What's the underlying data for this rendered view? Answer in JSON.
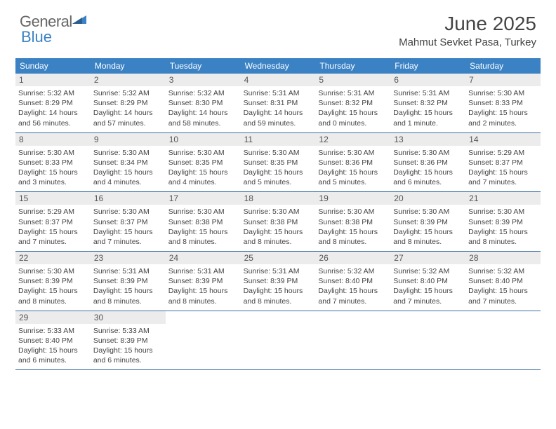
{
  "brand": {
    "part1": "General",
    "part2": "Blue"
  },
  "title": "June 2025",
  "location": "Mahmut Sevket Pasa, Turkey",
  "colors": {
    "header_bg": "#3b82c4",
    "daynum_bg": "#ececec",
    "row_border": "#3b6fa0",
    "text": "#444444"
  },
  "weekdays": [
    "Sunday",
    "Monday",
    "Tuesday",
    "Wednesday",
    "Thursday",
    "Friday",
    "Saturday"
  ],
  "weeks": [
    [
      {
        "n": "1",
        "sr": "Sunrise: 5:32 AM",
        "ss": "Sunset: 8:29 PM",
        "d1": "Daylight: 14 hours",
        "d2": "and 56 minutes."
      },
      {
        "n": "2",
        "sr": "Sunrise: 5:32 AM",
        "ss": "Sunset: 8:29 PM",
        "d1": "Daylight: 14 hours",
        "d2": "and 57 minutes."
      },
      {
        "n": "3",
        "sr": "Sunrise: 5:32 AM",
        "ss": "Sunset: 8:30 PM",
        "d1": "Daylight: 14 hours",
        "d2": "and 58 minutes."
      },
      {
        "n": "4",
        "sr": "Sunrise: 5:31 AM",
        "ss": "Sunset: 8:31 PM",
        "d1": "Daylight: 14 hours",
        "d2": "and 59 minutes."
      },
      {
        "n": "5",
        "sr": "Sunrise: 5:31 AM",
        "ss": "Sunset: 8:32 PM",
        "d1": "Daylight: 15 hours",
        "d2": "and 0 minutes."
      },
      {
        "n": "6",
        "sr": "Sunrise: 5:31 AM",
        "ss": "Sunset: 8:32 PM",
        "d1": "Daylight: 15 hours",
        "d2": "and 1 minute."
      },
      {
        "n": "7",
        "sr": "Sunrise: 5:30 AM",
        "ss": "Sunset: 8:33 PM",
        "d1": "Daylight: 15 hours",
        "d2": "and 2 minutes."
      }
    ],
    [
      {
        "n": "8",
        "sr": "Sunrise: 5:30 AM",
        "ss": "Sunset: 8:33 PM",
        "d1": "Daylight: 15 hours",
        "d2": "and 3 minutes."
      },
      {
        "n": "9",
        "sr": "Sunrise: 5:30 AM",
        "ss": "Sunset: 8:34 PM",
        "d1": "Daylight: 15 hours",
        "d2": "and 4 minutes."
      },
      {
        "n": "10",
        "sr": "Sunrise: 5:30 AM",
        "ss": "Sunset: 8:35 PM",
        "d1": "Daylight: 15 hours",
        "d2": "and 4 minutes."
      },
      {
        "n": "11",
        "sr": "Sunrise: 5:30 AM",
        "ss": "Sunset: 8:35 PM",
        "d1": "Daylight: 15 hours",
        "d2": "and 5 minutes."
      },
      {
        "n": "12",
        "sr": "Sunrise: 5:30 AM",
        "ss": "Sunset: 8:36 PM",
        "d1": "Daylight: 15 hours",
        "d2": "and 5 minutes."
      },
      {
        "n": "13",
        "sr": "Sunrise: 5:30 AM",
        "ss": "Sunset: 8:36 PM",
        "d1": "Daylight: 15 hours",
        "d2": "and 6 minutes."
      },
      {
        "n": "14",
        "sr": "Sunrise: 5:29 AM",
        "ss": "Sunset: 8:37 PM",
        "d1": "Daylight: 15 hours",
        "d2": "and 7 minutes."
      }
    ],
    [
      {
        "n": "15",
        "sr": "Sunrise: 5:29 AM",
        "ss": "Sunset: 8:37 PM",
        "d1": "Daylight: 15 hours",
        "d2": "and 7 minutes."
      },
      {
        "n": "16",
        "sr": "Sunrise: 5:30 AM",
        "ss": "Sunset: 8:37 PM",
        "d1": "Daylight: 15 hours",
        "d2": "and 7 minutes."
      },
      {
        "n": "17",
        "sr": "Sunrise: 5:30 AM",
        "ss": "Sunset: 8:38 PM",
        "d1": "Daylight: 15 hours",
        "d2": "and 8 minutes."
      },
      {
        "n": "18",
        "sr": "Sunrise: 5:30 AM",
        "ss": "Sunset: 8:38 PM",
        "d1": "Daylight: 15 hours",
        "d2": "and 8 minutes."
      },
      {
        "n": "19",
        "sr": "Sunrise: 5:30 AM",
        "ss": "Sunset: 8:38 PM",
        "d1": "Daylight: 15 hours",
        "d2": "and 8 minutes."
      },
      {
        "n": "20",
        "sr": "Sunrise: 5:30 AM",
        "ss": "Sunset: 8:39 PM",
        "d1": "Daylight: 15 hours",
        "d2": "and 8 minutes."
      },
      {
        "n": "21",
        "sr": "Sunrise: 5:30 AM",
        "ss": "Sunset: 8:39 PM",
        "d1": "Daylight: 15 hours",
        "d2": "and 8 minutes."
      }
    ],
    [
      {
        "n": "22",
        "sr": "Sunrise: 5:30 AM",
        "ss": "Sunset: 8:39 PM",
        "d1": "Daylight: 15 hours",
        "d2": "and 8 minutes."
      },
      {
        "n": "23",
        "sr": "Sunrise: 5:31 AM",
        "ss": "Sunset: 8:39 PM",
        "d1": "Daylight: 15 hours",
        "d2": "and 8 minutes."
      },
      {
        "n": "24",
        "sr": "Sunrise: 5:31 AM",
        "ss": "Sunset: 8:39 PM",
        "d1": "Daylight: 15 hours",
        "d2": "and 8 minutes."
      },
      {
        "n": "25",
        "sr": "Sunrise: 5:31 AM",
        "ss": "Sunset: 8:39 PM",
        "d1": "Daylight: 15 hours",
        "d2": "and 8 minutes."
      },
      {
        "n": "26",
        "sr": "Sunrise: 5:32 AM",
        "ss": "Sunset: 8:40 PM",
        "d1": "Daylight: 15 hours",
        "d2": "and 7 minutes."
      },
      {
        "n": "27",
        "sr": "Sunrise: 5:32 AM",
        "ss": "Sunset: 8:40 PM",
        "d1": "Daylight: 15 hours",
        "d2": "and 7 minutes."
      },
      {
        "n": "28",
        "sr": "Sunrise: 5:32 AM",
        "ss": "Sunset: 8:40 PM",
        "d1": "Daylight: 15 hours",
        "d2": "and 7 minutes."
      }
    ],
    [
      {
        "n": "29",
        "sr": "Sunrise: 5:33 AM",
        "ss": "Sunset: 8:40 PM",
        "d1": "Daylight: 15 hours",
        "d2": "and 6 minutes."
      },
      {
        "n": "30",
        "sr": "Sunrise: 5:33 AM",
        "ss": "Sunset: 8:39 PM",
        "d1": "Daylight: 15 hours",
        "d2": "and 6 minutes."
      },
      null,
      null,
      null,
      null,
      null
    ]
  ]
}
